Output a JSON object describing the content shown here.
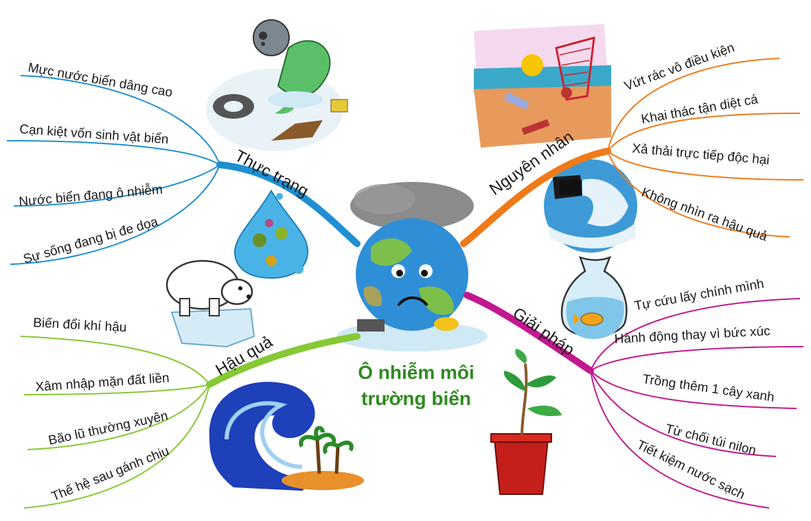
{
  "center": {
    "title_line1": "Ô nhiễm môi",
    "title_line2": "trường biển",
    "color": "#2e8b1f"
  },
  "branches": {
    "thuc_trang": {
      "label": "Thực trạng",
      "color": "#1f8fd2",
      "items": [
        "Mực nước biển dâng cao",
        "Cạn kiệt vốn sinh vật biển",
        "Nước biển đang ô nhiễm",
        "Sự sống đang bị đe dọa"
      ]
    },
    "hau_qua": {
      "label": "Hậu quả",
      "color": "#86c934",
      "items": [
        "Biến đổi khí hậu",
        "Xâm nhập mặn đất liền",
        "Bão lũ thường xuyên",
        "Thế hệ sau gánh chịu"
      ]
    },
    "nguyen_nhan": {
      "label": "Nguyên nhân",
      "color": "#f07a1a",
      "items": [
        "Vứt rác vô điều kiện",
        "Khai thác tận diệt cá",
        "Xả thải trực tiếp độc hại",
        "Không nhìn ra hậu quả"
      ]
    },
    "giai_phap": {
      "label": "Giải pháp",
      "color": "#c2188f",
      "items": [
        "Tự cứu lấy chính mình",
        "Hành động thay vì bức xúc",
        "Trồng thêm 1 cây xanh",
        "Từ chối túi nilon",
        "Tiết kiệm nước sạch"
      ]
    }
  },
  "icons": [
    "fish-gas-mask-icon",
    "beach-pollution-icon",
    "water-drop-bacteria-icon",
    "factory-pipe-icon",
    "polar-bear-icon",
    "fish-bag-icon",
    "tsunami-island-icon",
    "plant-pot-icon",
    "sad-earth-icon"
  ]
}
